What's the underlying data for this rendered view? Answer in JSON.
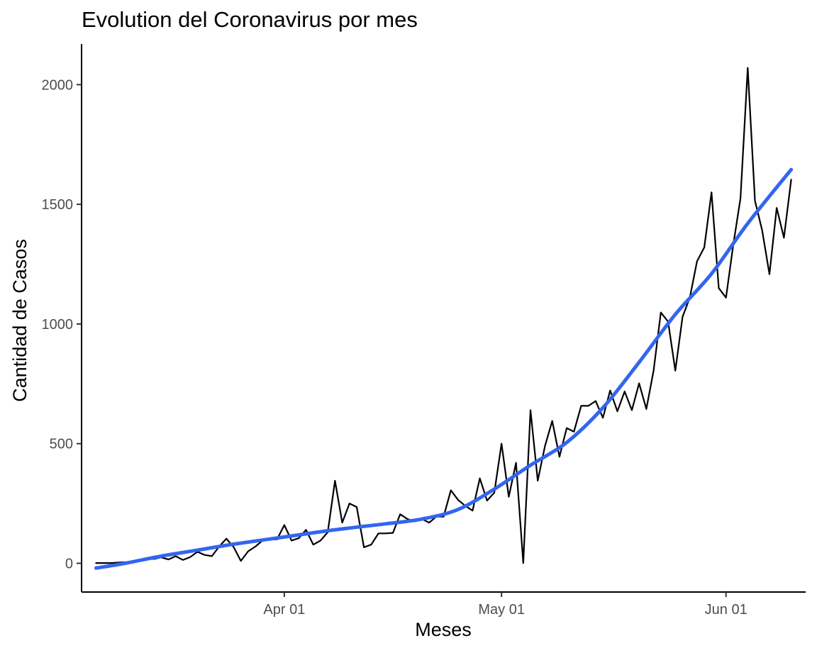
{
  "chart_data": {
    "type": "line",
    "title": "Evolution del Coronavirus por mes",
    "xlabel": "Meses",
    "ylabel": "Cantidad de Casos",
    "x_type": "date",
    "xlim": [
      "2020-03-04",
      "2020-06-12"
    ],
    "ylim": [
      -120,
      2170
    ],
    "x_ticks": [
      {
        "date": "2020-04-01",
        "label": "Apr 01"
      },
      {
        "date": "2020-05-01",
        "label": "May 01"
      },
      {
        "date": "2020-06-01",
        "label": "Jun 01"
      }
    ],
    "y_ticks": [
      {
        "value": 0,
        "label": "0"
      },
      {
        "value": 500,
        "label": "500"
      },
      {
        "value": 1000,
        "label": "1000"
      },
      {
        "value": 1500,
        "label": "1500"
      },
      {
        "value": 2000,
        "label": "2000"
      }
    ],
    "grid": false,
    "series": [
      {
        "kind": "line",
        "color": "#000000",
        "points": [
          [
            "2020-03-06",
            1
          ],
          [
            "2020-03-07",
            1
          ],
          [
            "2020-03-08",
            1
          ],
          [
            "2020-03-09",
            3
          ],
          [
            "2020-03-10",
            5
          ],
          [
            "2020-03-11",
            4
          ],
          [
            "2020-03-12",
            10
          ],
          [
            "2020-03-13",
            20
          ],
          [
            "2020-03-14",
            18
          ],
          [
            "2020-03-15",
            25
          ],
          [
            "2020-03-16",
            16
          ],
          [
            "2020-03-17",
            30
          ],
          [
            "2020-03-18",
            14
          ],
          [
            "2020-03-19",
            26
          ],
          [
            "2020-03-20",
            48
          ],
          [
            "2020-03-21",
            35
          ],
          [
            "2020-03-22",
            30
          ],
          [
            "2020-03-23",
            70
          ],
          [
            "2020-03-24",
            103
          ],
          [
            "2020-03-25",
            68
          ],
          [
            "2020-03-26",
            10
          ],
          [
            "2020-03-27",
            50
          ],
          [
            "2020-03-28",
            70
          ],
          [
            "2020-03-29",
            95
          ],
          [
            "2020-03-30",
            100
          ],
          [
            "2020-03-31",
            100
          ],
          [
            "2020-04-01",
            160
          ],
          [
            "2020-04-02",
            95
          ],
          [
            "2020-04-03",
            105
          ],
          [
            "2020-04-04",
            140
          ],
          [
            "2020-04-05",
            78
          ],
          [
            "2020-04-06",
            95
          ],
          [
            "2020-04-07",
            130
          ],
          [
            "2020-04-08",
            345
          ],
          [
            "2020-04-09",
            170
          ],
          [
            "2020-04-10",
            250
          ],
          [
            "2020-04-11",
            235
          ],
          [
            "2020-04-12",
            67
          ],
          [
            "2020-04-13",
            78
          ],
          [
            "2020-04-14",
            125
          ],
          [
            "2020-04-15",
            125
          ],
          [
            "2020-04-16",
            127
          ],
          [
            "2020-04-17",
            205
          ],
          [
            "2020-04-18",
            185
          ],
          [
            "2020-04-19",
            175
          ],
          [
            "2020-04-20",
            185
          ],
          [
            "2020-04-21",
            170
          ],
          [
            "2020-04-22",
            195
          ],
          [
            "2020-04-23",
            195
          ],
          [
            "2020-04-24",
            305
          ],
          [
            "2020-04-25",
            265
          ],
          [
            "2020-04-26",
            240
          ],
          [
            "2020-04-27",
            220
          ],
          [
            "2020-04-28",
            355
          ],
          [
            "2020-04-29",
            262
          ],
          [
            "2020-04-30",
            295
          ],
          [
            "2020-05-01",
            500
          ],
          [
            "2020-05-02",
            278
          ],
          [
            "2020-05-03",
            420
          ],
          [
            "2020-05-04",
            1
          ],
          [
            "2020-05-05",
            640
          ],
          [
            "2020-05-06",
            345
          ],
          [
            "2020-05-07",
            490
          ],
          [
            "2020-05-08",
            595
          ],
          [
            "2020-05-09",
            445
          ],
          [
            "2020-05-10",
            565
          ],
          [
            "2020-05-11",
            550
          ],
          [
            "2020-05-12",
            658
          ],
          [
            "2020-05-13",
            658
          ],
          [
            "2020-05-14",
            678
          ],
          [
            "2020-05-15",
            608
          ],
          [
            "2020-05-16",
            722
          ],
          [
            "2020-05-17",
            635
          ],
          [
            "2020-05-18",
            718
          ],
          [
            "2020-05-19",
            640
          ],
          [
            "2020-05-20",
            752
          ],
          [
            "2020-05-21",
            645
          ],
          [
            "2020-05-22",
            805
          ],
          [
            "2020-05-23",
            1048
          ],
          [
            "2020-05-24",
            1010
          ],
          [
            "2020-05-25",
            805
          ],
          [
            "2020-05-26",
            1030
          ],
          [
            "2020-05-27",
            1110
          ],
          [
            "2020-05-28",
            1262
          ],
          [
            "2020-05-29",
            1320
          ],
          [
            "2020-05-30",
            1550
          ],
          [
            "2020-05-31",
            1150
          ],
          [
            "2020-06-01",
            1110
          ],
          [
            "2020-06-02",
            1330
          ],
          [
            "2020-06-03",
            1525
          ],
          [
            "2020-06-04",
            2070
          ],
          [
            "2020-06-05",
            1515
          ],
          [
            "2020-06-06",
            1390
          ],
          [
            "2020-06-07",
            1208
          ],
          [
            "2020-06-08",
            1485
          ],
          [
            "2020-06-09",
            1360
          ],
          [
            "2020-06-10",
            1603
          ]
        ]
      },
      {
        "kind": "smooth",
        "color": "#3366ee",
        "points": [
          [
            "2020-03-06",
            -20
          ],
          [
            "2020-03-10",
            0
          ],
          [
            "2020-03-15",
            30
          ],
          [
            "2020-03-20",
            55
          ],
          [
            "2020-03-25",
            80
          ],
          [
            "2020-04-01",
            110
          ],
          [
            "2020-04-08",
            140
          ],
          [
            "2020-04-15",
            165
          ],
          [
            "2020-04-20",
            185
          ],
          [
            "2020-04-25",
            225
          ],
          [
            "2020-04-30",
            310
          ],
          [
            "2020-05-05",
            410
          ],
          [
            "2020-05-10",
            505
          ],
          [
            "2020-05-15",
            650
          ],
          [
            "2020-05-20",
            840
          ],
          [
            "2020-05-25",
            1040
          ],
          [
            "2020-05-30",
            1210
          ],
          [
            "2020-06-04",
            1420
          ],
          [
            "2020-06-10",
            1645
          ]
        ]
      }
    ]
  }
}
